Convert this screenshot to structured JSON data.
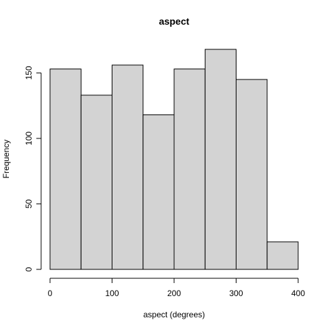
{
  "chart_data": {
    "type": "bar",
    "title": "aspect",
    "xlabel": "aspect (degrees)",
    "ylabel": "Frequency",
    "bins": [
      {
        "start": 0,
        "end": 50,
        "value": 153
      },
      {
        "start": 50,
        "end": 100,
        "value": 133
      },
      {
        "start": 100,
        "end": 150,
        "value": 156
      },
      {
        "start": 150,
        "end": 200,
        "value": 118
      },
      {
        "start": 200,
        "end": 250,
        "value": 153
      },
      {
        "start": 250,
        "end": 300,
        "value": 168
      },
      {
        "start": 300,
        "end": 350,
        "value": 145
      },
      {
        "start": 350,
        "end": 400,
        "value": 21
      }
    ],
    "xlim": [
      0,
      400
    ],
    "ylim": [
      0,
      168
    ],
    "x_ticks": [
      0,
      100,
      200,
      300,
      400
    ],
    "y_ticks": [
      0,
      50,
      100,
      150
    ],
    "grid": false,
    "bar_color": "#d3d3d3",
    "edge_color": "#000000"
  }
}
